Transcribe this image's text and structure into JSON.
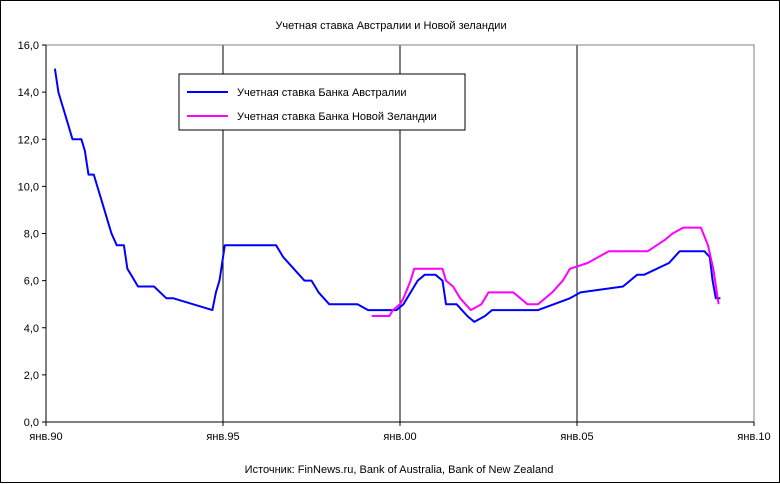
{
  "chart_data": {
    "type": "line",
    "title": "Учетная ставка Австралии и Новой зеландии",
    "source": "Источник: FinNews.ru, Bank of Australia, Bank of New Zealand",
    "x_range": [
      1990.0,
      2010.0
    ],
    "ylim": [
      0,
      16
    ],
    "y_ticks": [
      0,
      2,
      4,
      6,
      8,
      10,
      12,
      14,
      16
    ],
    "y_tick_labels": [
      "0,0",
      "2,0",
      "4,0",
      "6,0",
      "8,0",
      "10,0",
      "12,0",
      "14,0",
      "16,0"
    ],
    "x_ticks": [
      1990.0,
      1995.0,
      2000.0,
      2005.0,
      2010.0
    ],
    "x_tick_labels": [
      "янв.90",
      "янв.95",
      "янв.00",
      "янв.05",
      "янв.10"
    ],
    "grid": "vertical",
    "legend_placement": "top-left",
    "series": [
      {
        "name": "Учетная ставка Банка Австралии",
        "color": "#0000ff",
        "x": [
          1990.25,
          1990.35,
          1990.45,
          1990.55,
          1990.65,
          1990.75,
          1991.0,
          1991.1,
          1991.2,
          1991.35,
          1991.45,
          1991.55,
          1991.65,
          1991.75,
          1991.85,
          1992.0,
          1992.2,
          1992.3,
          1992.4,
          1992.6,
          1992.8,
          1993.05,
          1993.4,
          1993.6,
          1994.7,
          1994.8,
          1994.9,
          1995.05,
          1995.5,
          1996.5,
          1996.7,
          1997.0,
          1997.3,
          1997.5,
          1997.7,
          1998.0,
          1998.8,
          1999.1,
          1999.3,
          1999.7,
          1999.9,
          2000.1,
          2000.3,
          2000.5,
          2000.7,
          2001.0,
          2001.2,
          2001.3,
          2001.6,
          2001.75,
          2001.9,
          2002.1,
          2002.4,
          2002.6,
          2002.8,
          2003.6,
          2003.9,
          2004.8,
          2005.1,
          2006.3,
          2006.5,
          2006.7,
          2006.9,
          2007.6,
          2007.75,
          2007.9,
          2008.1,
          2008.6,
          2008.75,
          2008.83,
          2008.92,
          2009.05
        ],
        "y": [
          15.0,
          14.0,
          13.5,
          13.0,
          12.5,
          12.0,
          12.0,
          11.5,
          10.5,
          10.5,
          10.0,
          9.5,
          9.0,
          8.5,
          8.0,
          7.5,
          7.5,
          6.5,
          6.25,
          5.75,
          5.75,
          5.75,
          5.25,
          5.25,
          4.75,
          5.5,
          6.0,
          7.5,
          7.5,
          7.5,
          7.0,
          6.5,
          6.0,
          6.0,
          5.5,
          5.0,
          5.0,
          4.75,
          4.75,
          4.75,
          4.75,
          5.0,
          5.5,
          6.0,
          6.25,
          6.25,
          6.0,
          5.0,
          5.0,
          4.75,
          4.5,
          4.25,
          4.5,
          4.75,
          4.75,
          4.75,
          4.75,
          5.25,
          5.5,
          5.75,
          6.0,
          6.25,
          6.25,
          6.75,
          7.0,
          7.25,
          7.25,
          7.25,
          7.0,
          6.0,
          5.25,
          5.25
        ]
      },
      {
        "name": "Учетная ставка Банка Новой Зеландии",
        "color": "#ff00ff",
        "x": [
          1999.2,
          1999.7,
          1999.8,
          2000.0,
          2000.1,
          2000.3,
          2000.4,
          2001.2,
          2001.3,
          2001.5,
          2001.7,
          2002.0,
          2002.3,
          2002.5,
          2003.2,
          2003.4,
          2003.6,
          2003.9,
          2004.3,
          2004.6,
          2004.8,
          2005.3,
          2005.6,
          2005.9,
          2006.5,
          2007.0,
          2007.5,
          2007.7,
          2008.0,
          2008.5,
          2008.7,
          2008.85,
          2009.0
        ],
        "y": [
          4.5,
          4.5,
          4.75,
          5.0,
          5.25,
          6.0,
          6.5,
          6.5,
          6.0,
          5.75,
          5.25,
          4.75,
          5.0,
          5.5,
          5.5,
          5.25,
          5.0,
          5.0,
          5.5,
          6.0,
          6.5,
          6.75,
          7.0,
          7.25,
          7.25,
          7.25,
          7.75,
          8.0,
          8.25,
          8.25,
          7.5,
          6.5,
          5.0
        ]
      }
    ]
  }
}
